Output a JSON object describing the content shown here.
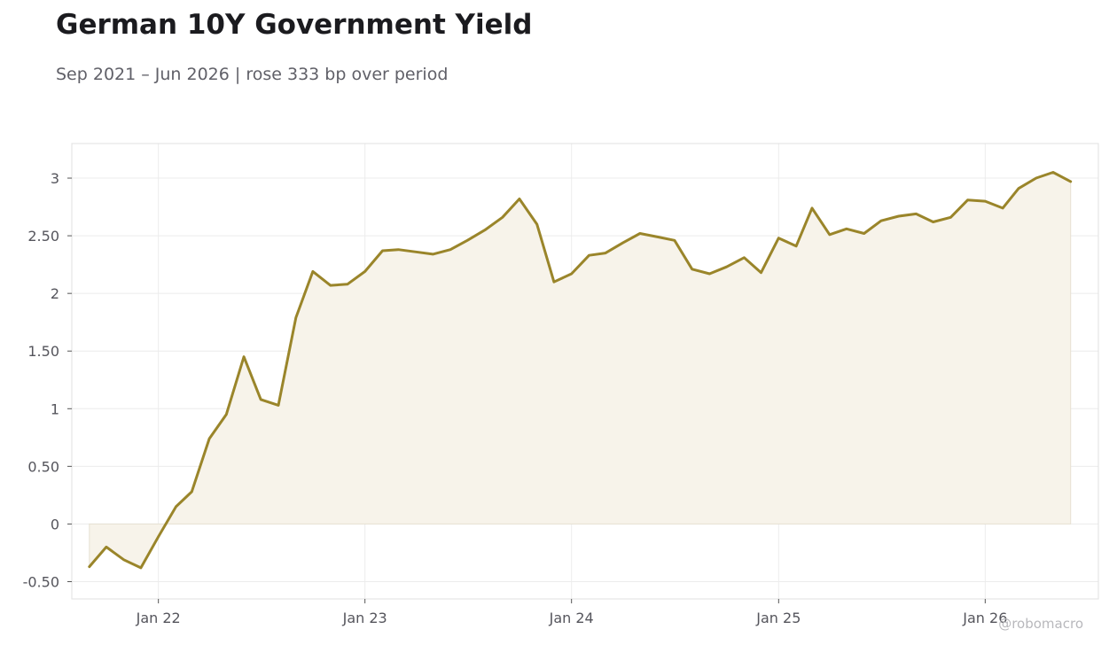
{
  "header": {
    "title": "German 10Y Government Yield",
    "subtitle": "Sep 2021 – Jun 2026 | rose 333 bp over period"
  },
  "watermark": "@robomacro",
  "colors": {
    "line": "#9a852a",
    "fill": "#f7f3ea",
    "grid": "#ececec",
    "frame": "#e0e0e0"
  },
  "chart_data": {
    "type": "area",
    "title": "German 10Y Government Yield",
    "subtitle": "Sep 2021 – Jun 2026 | rose 333 bp over period",
    "xlabel": "",
    "ylabel": "",
    "ylim": [
      -0.65,
      3.3
    ],
    "xlim": [
      "2021-08-01",
      "2026-07-20"
    ],
    "grid": true,
    "y_ticks": [
      -0.5,
      0,
      0.5,
      1,
      1.5,
      2,
      2.5,
      3
    ],
    "y_tick_labels": [
      "-0.50",
      "0",
      "0.50",
      "1",
      "1.50",
      "2",
      "2.50",
      "3"
    ],
    "x_ticks": [
      "2022-01-01",
      "2023-01-01",
      "2024-01-01",
      "2025-01-01",
      "2026-01-01"
    ],
    "x_tick_labels": [
      "Jan 22",
      "Jan 23",
      "Jan 24",
      "Jan 25",
      "Jan 26"
    ],
    "series": [
      {
        "x": [
          "2021-09-01",
          "2021-10-01",
          "2021-11-01",
          "2021-12-01",
          "2022-01-01",
          "2022-02-01",
          "2022-03-01",
          "2022-04-01",
          "2022-05-01",
          "2022-06-01",
          "2022-07-01",
          "2022-08-01",
          "2022-09-01",
          "2022-10-01",
          "2022-11-01",
          "2022-12-01",
          "2023-01-01",
          "2023-02-01",
          "2023-03-01",
          "2023-04-01",
          "2023-05-01",
          "2023-06-01",
          "2023-07-01",
          "2023-08-01",
          "2023-09-01",
          "2023-10-01",
          "2023-11-01",
          "2023-12-01",
          "2024-01-01",
          "2024-02-01",
          "2024-03-01",
          "2024-04-01",
          "2024-05-01",
          "2024-06-01",
          "2024-07-01",
          "2024-08-01",
          "2024-09-01",
          "2024-10-01",
          "2024-11-01",
          "2024-12-01",
          "2025-01-01",
          "2025-02-01",
          "2025-03-01",
          "2025-04-01",
          "2025-05-01",
          "2025-06-01",
          "2025-07-01",
          "2025-08-01",
          "2025-09-01",
          "2025-10-01",
          "2025-11-01",
          "2025-12-01",
          "2026-01-01",
          "2026-02-01",
          "2026-03-01",
          "2026-04-01",
          "2026-05-01",
          "2026-06-01"
        ],
        "values": [
          -0.37,
          -0.2,
          -0.31,
          -0.38,
          -0.11,
          0.15,
          0.28,
          0.74,
          0.95,
          1.45,
          1.08,
          1.03,
          1.79,
          2.19,
          2.07,
          2.08,
          2.19,
          2.37,
          2.38,
          2.36,
          2.34,
          2.38,
          2.46,
          2.55,
          2.66,
          2.82,
          2.6,
          2.1,
          2.17,
          2.33,
          2.35,
          2.44,
          2.52,
          2.49,
          2.46,
          2.21,
          2.17,
          2.23,
          2.31,
          2.18,
          2.48,
          2.41,
          2.74,
          2.51,
          2.56,
          2.52,
          2.63,
          2.67,
          2.69,
          2.62,
          2.66,
          2.81,
          2.8,
          2.74,
          2.91,
          3.0,
          3.05,
          2.97
        ]
      }
    ]
  }
}
